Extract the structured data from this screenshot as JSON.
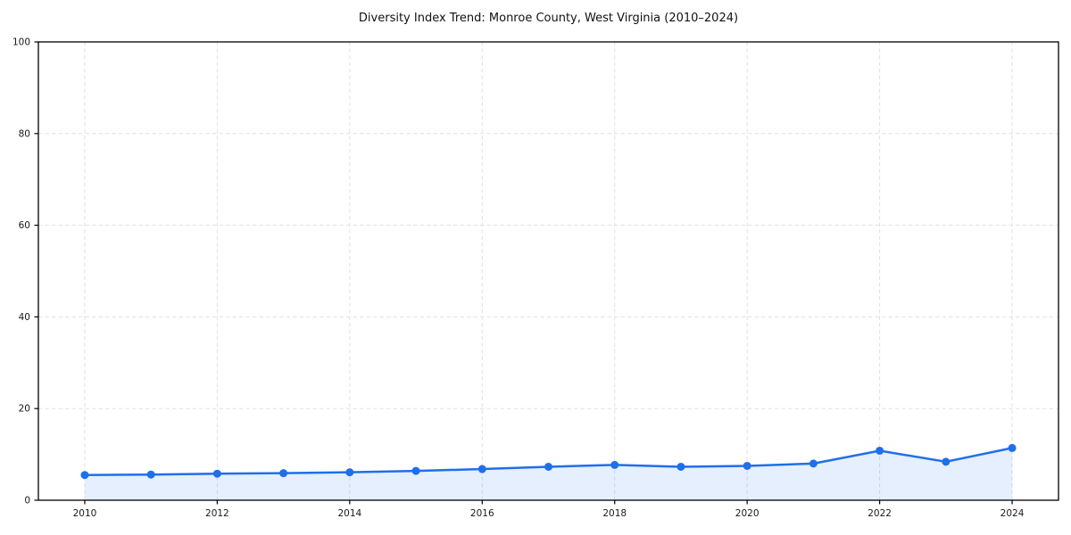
{
  "chart_data": {
    "type": "line",
    "title": "Diversity Index Trend: Monroe County, West Virginia (2010–2024)",
    "xlabel": "",
    "ylabel": "",
    "x": [
      2010,
      2011,
      2012,
      2013,
      2014,
      2015,
      2016,
      2017,
      2018,
      2019,
      2020,
      2021,
      2022,
      2023,
      2024
    ],
    "values": [
      5.5,
      5.6,
      5.8,
      5.9,
      6.1,
      6.4,
      6.8,
      7.3,
      7.7,
      7.3,
      7.5,
      8.0,
      10.8,
      8.4,
      11.4
    ],
    "ylim": [
      0,
      100
    ],
    "yticks": [
      0,
      20,
      40,
      60,
      80,
      100
    ],
    "xticks": [
      2010,
      2012,
      2014,
      2016,
      2018,
      2020,
      2022,
      2024
    ],
    "x_margin_fraction": 0.05,
    "grid": true,
    "grid_style": "dashed",
    "legend": "none",
    "area_fill": true,
    "markers": true,
    "colors": {
      "line": "#1f6feb",
      "marker": "#1f6feb",
      "fill": "rgba(31, 111, 235, 0.11)",
      "grid": "#e1e1e4",
      "spine": "#000000",
      "tick_label": "#1a1a1a",
      "title": "#111111",
      "background": "#ffffff"
    }
  }
}
